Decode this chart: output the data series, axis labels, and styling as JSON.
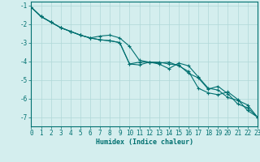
{
  "xlabel": "Humidex (Indice chaleur)",
  "bg_color": "#d4eeee",
  "grid_color": "#b0d8d8",
  "line_color": "#007070",
  "xlim": [
    0,
    23
  ],
  "ylim": [
    -7.5,
    -0.8
  ],
  "yticks": [
    -7,
    -6,
    -5,
    -4,
    -3,
    -2,
    -1
  ],
  "xticks": [
    0,
    1,
    2,
    3,
    4,
    5,
    6,
    7,
    8,
    9,
    10,
    11,
    12,
    13,
    14,
    15,
    16,
    17,
    18,
    19,
    20,
    21,
    22,
    23
  ],
  "line1_x": [
    0,
    1,
    2,
    3,
    4,
    5,
    6,
    7,
    8,
    9,
    10,
    11,
    12,
    13,
    14,
    15,
    16,
    17,
    18,
    19,
    20,
    21,
    22,
    23
  ],
  "line1_y": [
    -1.1,
    -1.6,
    -1.9,
    -2.2,
    -2.4,
    -2.6,
    -2.75,
    -2.85,
    -2.9,
    -3.0,
    -4.15,
    -4.05,
    -4.05,
    -4.1,
    -4.05,
    -4.25,
    -4.55,
    -5.45,
    -5.7,
    -5.8,
    -5.65,
    -6.05,
    -6.65,
    -7.0
  ],
  "line2_x": [
    0,
    1,
    2,
    3,
    4,
    5,
    6,
    7,
    8,
    9,
    10,
    11,
    12,
    13,
    14,
    15,
    16,
    17,
    18,
    19,
    20,
    21,
    22,
    23
  ],
  "line2_y": [
    -1.1,
    -1.6,
    -1.9,
    -2.2,
    -2.4,
    -2.6,
    -2.75,
    -2.65,
    -2.6,
    -2.75,
    -3.2,
    -3.95,
    -4.05,
    -4.05,
    -4.15,
    -4.2,
    -4.65,
    -4.9,
    -5.5,
    -5.35,
    -5.75,
    -6.3,
    -6.5,
    -7.0
  ],
  "line3_x": [
    0,
    1,
    2,
    3,
    4,
    5,
    6,
    7,
    8,
    9,
    10,
    11,
    12,
    13,
    14,
    15,
    16,
    17,
    18,
    19,
    20,
    21,
    22,
    23
  ],
  "line3_y": [
    -1.1,
    -1.6,
    -1.9,
    -2.2,
    -2.4,
    -2.6,
    -2.75,
    -2.85,
    -2.9,
    -3.0,
    -4.15,
    -4.2,
    -4.05,
    -4.15,
    -4.4,
    -4.1,
    -4.25,
    -4.85,
    -5.45,
    -5.55,
    -5.95,
    -6.1,
    -6.35,
    -7.0
  ],
  "marker": "+",
  "markersize": 3,
  "linewidth": 0.8,
  "axis_fontsize": 6,
  "tick_fontsize": 5.5
}
